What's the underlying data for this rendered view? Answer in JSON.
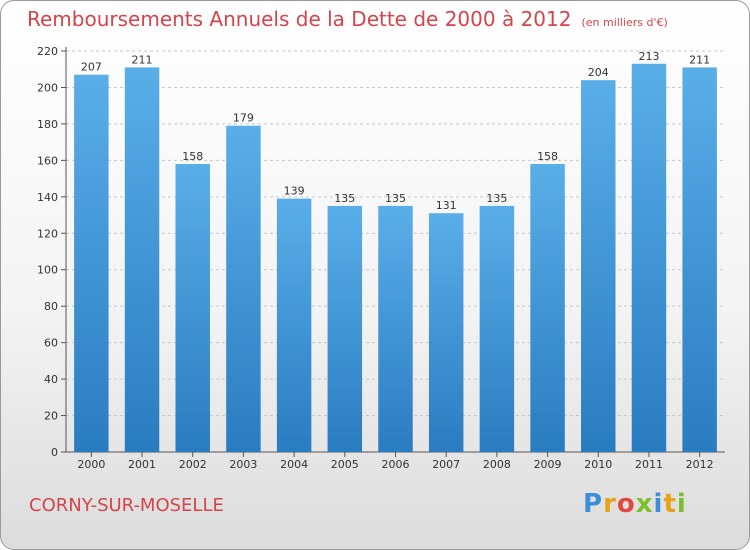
{
  "chart_data": {
    "type": "bar",
    "title": "Remboursements Annuels de la Dette de 2000 à 2012",
    "unit_note": "(en milliers d'€)",
    "categories": [
      "2000",
      "2001",
      "2002",
      "2003",
      "2004",
      "2005",
      "2006",
      "2007",
      "2008",
      "2009",
      "2010",
      "2011",
      "2012"
    ],
    "values": [
      207,
      211,
      158,
      179,
      139,
      135,
      135,
      131,
      135,
      158,
      204,
      213,
      211
    ],
    "ylim": [
      0,
      220
    ],
    "yticks": [
      0,
      20,
      40,
      60,
      80,
      100,
      120,
      140,
      160,
      180,
      200,
      220
    ],
    "xlabel": "",
    "ylabel": "",
    "grid": true,
    "bar_color_top": "#5aaee8",
    "bar_color_bottom": "#2a7cc0"
  },
  "footer": {
    "commune": "CORNY-SUR-MOSELLE",
    "logo_letters": [
      "P",
      "r",
      "o",
      "x",
      "i",
      "t",
      "i"
    ],
    "logo_colors": [
      "#3a8fd8",
      "#e8a21a",
      "#e04a3a",
      "#7bbf2a",
      "#3a8fd8",
      "#e8a21a",
      "#7bbf2a"
    ]
  }
}
